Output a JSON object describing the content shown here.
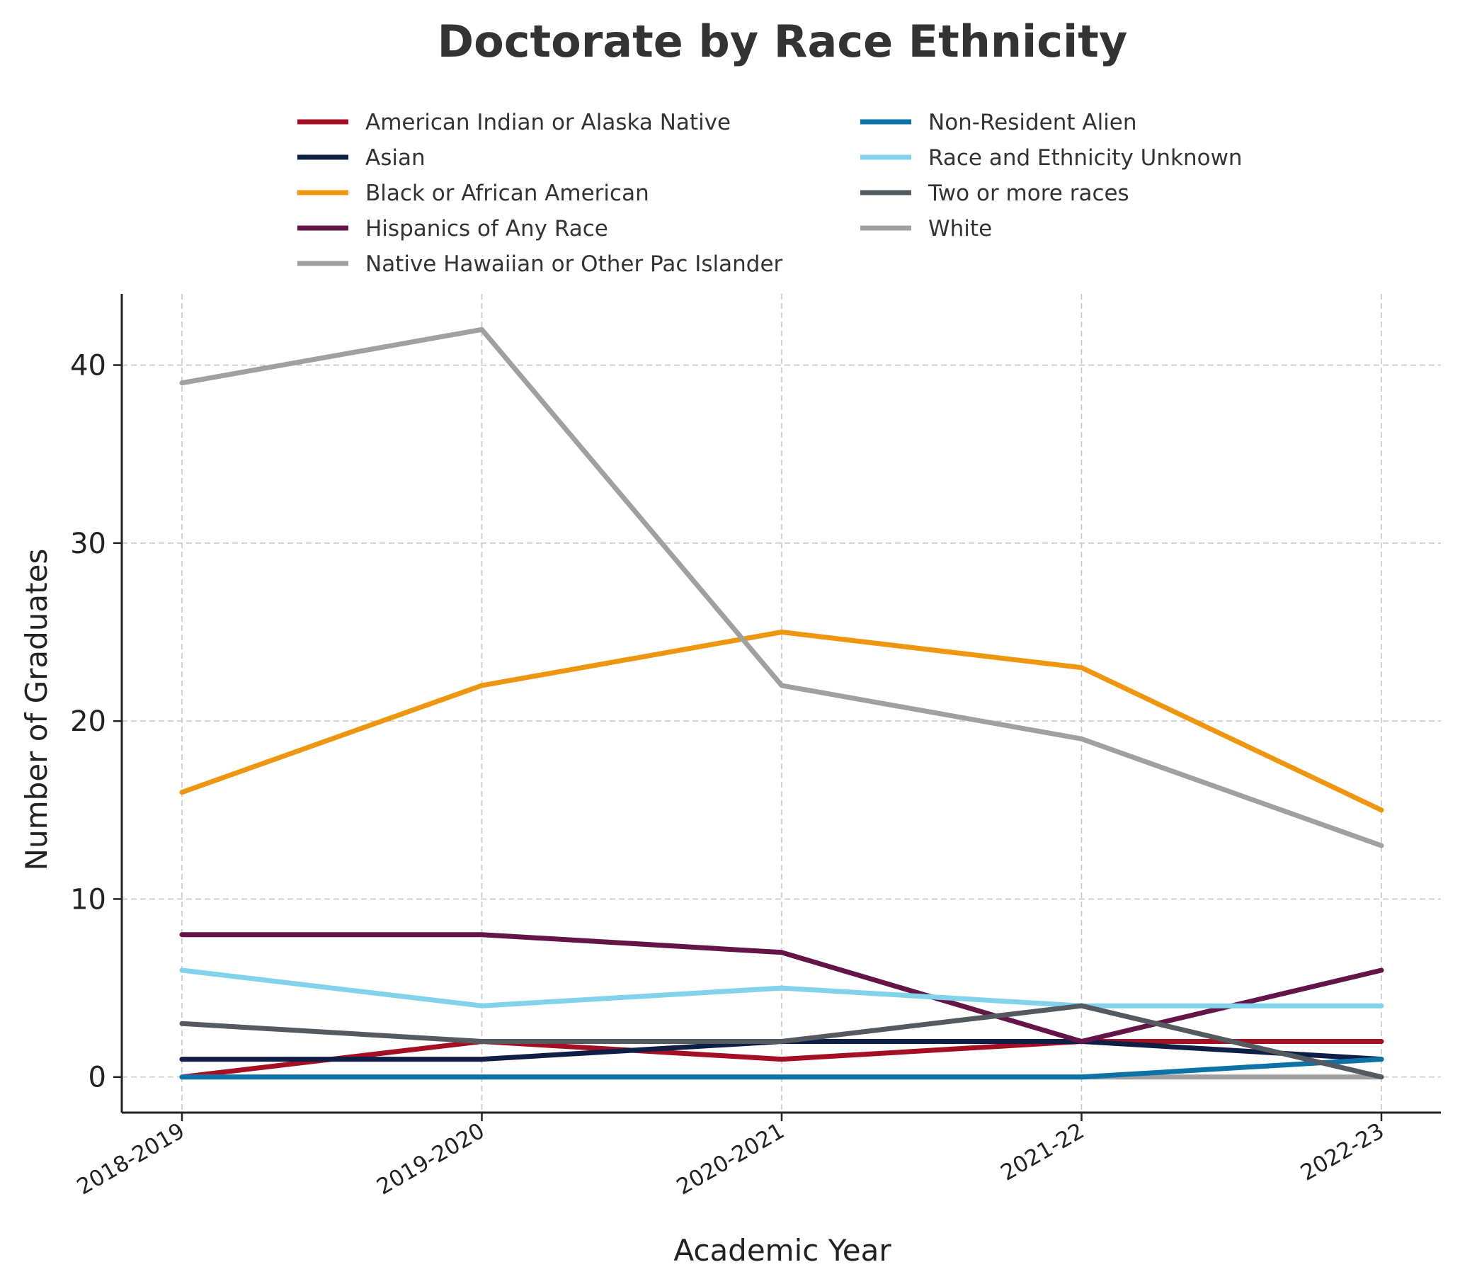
{
  "chart_data": {
    "type": "line",
    "title": "Doctorate by Race Ethnicity",
    "xlabel": "Academic Year",
    "ylabel": "Number of Graduates",
    "categories": [
      "2018-2019",
      "2019-2020",
      "2020-2021",
      "2021-22",
      "2022-23"
    ],
    "ylim": [
      -2,
      44
    ],
    "yticks": [
      0,
      10,
      20,
      30,
      40
    ],
    "grid": true,
    "legend_position": "top-center",
    "series": [
      {
        "name": "American Indian or Alaska Native",
        "color": "#a50f23",
        "values": [
          0,
          2,
          1,
          2,
          2
        ]
      },
      {
        "name": "Asian",
        "color": "#0f1e46",
        "values": [
          1,
          1,
          2,
          2,
          1
        ]
      },
      {
        "name": "Black or African American",
        "color": "#ee9610",
        "values": [
          16,
          22,
          25,
          23,
          15
        ]
      },
      {
        "name": "Hispanics of Any Race",
        "color": "#641446",
        "values": [
          8,
          8,
          7,
          2,
          6
        ]
      },
      {
        "name": "Native Hawaiian or Other Pac Islander",
        "color": "#a0a0a0",
        "values": [
          0,
          0,
          0,
          0,
          0
        ]
      },
      {
        "name": "Non-Resident Alien",
        "color": "#0b73a5",
        "values": [
          0,
          0,
          0,
          0,
          1
        ]
      },
      {
        "name": "Race and Ethnicity Unknown",
        "color": "#82d2ec",
        "values": [
          6,
          4,
          5,
          4,
          4
        ]
      },
      {
        "name": "Two or more races",
        "color": "#555a60",
        "values": [
          3,
          2,
          2,
          4,
          0
        ]
      },
      {
        "name": "White",
        "color": "#a0a0a0",
        "values": [
          39,
          42,
          22,
          19,
          13
        ]
      }
    ]
  }
}
